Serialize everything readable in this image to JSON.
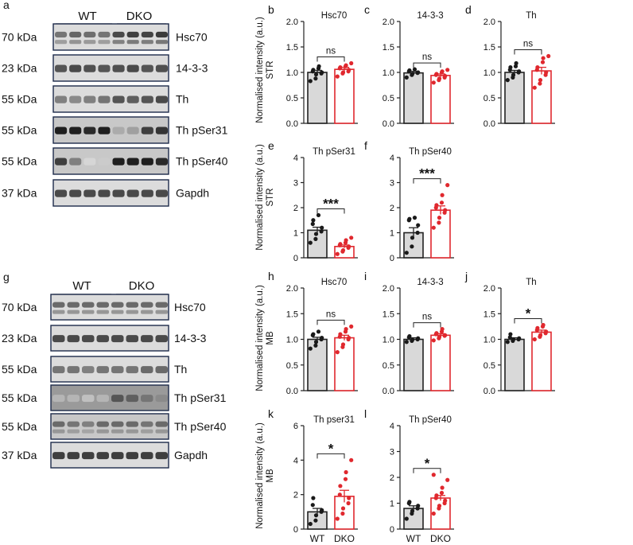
{
  "colors": {
    "wt_bar": "#d9d9d9",
    "dko_bar": "#ffffff",
    "wt_dot": "#1a1a1a",
    "dko_dot": "#e0282e",
    "dko_edge": "#e0282e",
    "axis": "#222222"
  },
  "blots": [
    {
      "label": "a",
      "wt_label": "WT",
      "dko_label": "DKO",
      "rows": [
        {
          "kda": "70 kDa",
          "protein": "Hsc70",
          "wt_int": [
            0.55,
            0.62,
            0.58,
            0.55
          ],
          "dko_int": [
            0.75,
            0.8,
            0.78,
            0.82
          ],
          "dbl": true
        },
        {
          "kda": "23 kDa",
          "protein": "14-3-3",
          "wt_int": [
            0.7,
            0.75,
            0.72,
            0.7
          ],
          "dko_int": [
            0.72,
            0.75,
            0.7,
            0.72
          ],
          "dbl": false
        },
        {
          "kda": "55 kDa",
          "protein": "Th",
          "wt_int": [
            0.5,
            0.45,
            0.5,
            0.55
          ],
          "dko_int": [
            0.7,
            0.65,
            0.7,
            0.75
          ],
          "dbl": false
        },
        {
          "kda": "55 kDa",
          "protein": "Th pSer31",
          "wt_int": [
            0.95,
            0.95,
            0.9,
            0.95
          ],
          "dko_int": [
            0.3,
            0.35,
            0.8,
            0.85
          ],
          "dbl": false
        },
        {
          "kda": "55 kDa",
          "protein": "Th pSer40",
          "wt_int": [
            0.8,
            0.5,
            0.1,
            0.15
          ],
          "dko_int": [
            0.95,
            0.95,
            0.95,
            0.9
          ],
          "dbl": false
        },
        {
          "kda": "37 kDa",
          "protein": "Gapdh",
          "wt_int": [
            0.75,
            0.75,
            0.75,
            0.75
          ],
          "dko_int": [
            0.75,
            0.75,
            0.75,
            0.75
          ],
          "dbl": false
        }
      ]
    },
    {
      "label": "g",
      "wt_label": "WT",
      "dko_label": "DKO",
      "rows": [
        {
          "kda": "70 kDa",
          "protein": "Hsc70",
          "wt_int": [
            0.6,
            0.6,
            0.6,
            0.6
          ],
          "dko_int": [
            0.6,
            0.6,
            0.6,
            0.6
          ],
          "dbl": true
        },
        {
          "kda": "23 kDa",
          "protein": "14-3-3",
          "wt_int": [
            0.75,
            0.75,
            0.75,
            0.75
          ],
          "dko_int": [
            0.75,
            0.75,
            0.75,
            0.75
          ],
          "dbl": false
        },
        {
          "kda": "55 kDa",
          "protein": "Th",
          "wt_int": [
            0.55,
            0.55,
            0.5,
            0.55
          ],
          "dko_int": [
            0.55,
            0.55,
            0.6,
            0.6
          ],
          "dbl": false
        },
        {
          "kda": "55 kDa",
          "protein": "Th pSer31",
          "wt_int": [
            0.25,
            0.25,
            0.2,
            0.25
          ],
          "dko_int": [
            0.7,
            0.65,
            0.55,
            0.45
          ],
          "dbl": false
        },
        {
          "kda": "55 kDa",
          "protein": "Th pSer40",
          "wt_int": [
            0.6,
            0.55,
            0.5,
            0.6
          ],
          "dko_int": [
            0.6,
            0.6,
            0.55,
            0.6
          ],
          "dbl": true
        },
        {
          "kda": "37 kDa",
          "protein": "Gapdh",
          "wt_int": [
            0.8,
            0.8,
            0.8,
            0.8
          ],
          "dko_int": [
            0.8,
            0.8,
            0.8,
            0.8
          ],
          "dbl": false
        }
      ]
    }
  ],
  "row_labels": [
    {
      "ylabel": "Normalised intensity (a.u.)",
      "region": "STR"
    },
    {
      "ylabel": "Normalised intensity (a.u.)",
      "region": "STR"
    },
    {
      "ylabel": "Normalised intensity (a.u.)",
      "region": "MB"
    },
    {
      "ylabel": "Normalised intensity (a.u.)",
      "region": "MB"
    }
  ],
  "chart_data": [
    {
      "type": "bar",
      "panel": "b",
      "title": "Hsc70",
      "categories": [
        "WT",
        "DKO"
      ],
      "values": [
        1.0,
        1.06
      ],
      "errors": [
        0.04,
        0.04
      ],
      "sig": "ns",
      "ylim": [
        0,
        2
      ],
      "yticks": [
        "0.0",
        "0.5",
        "1.0",
        "1.5",
        "2.0"
      ],
      "xlabels": [
        "",
        ""
      ],
      "points": {
        "WT": [
          0.83,
          0.88,
          0.96,
          0.98,
          1.0,
          1.02,
          1.05,
          1.08,
          1.12
        ],
        "DKO": [
          0.92,
          0.98,
          1.0,
          1.02,
          1.05,
          1.08,
          1.1,
          1.12,
          1.14,
          1.18
        ]
      }
    },
    {
      "type": "bar",
      "panel": "c",
      "title": "14-3-3",
      "categories": [
        "WT",
        "DKO"
      ],
      "values": [
        0.99,
        0.94
      ],
      "errors": [
        0.03,
        0.03
      ],
      "sig": "ns",
      "ylim": [
        0,
        2
      ],
      "yticks": [
        "0.0",
        "0.5",
        "1.0",
        "1.5",
        "2.0"
      ],
      "xlabels": [
        "",
        ""
      ],
      "points": {
        "WT": [
          0.9,
          0.95,
          0.97,
          0.99,
          1.0,
          1.02,
          1.04,
          1.06
        ],
        "DKO": [
          0.8,
          0.85,
          0.88,
          0.9,
          0.93,
          0.95,
          0.97,
          1.0,
          1.02,
          1.05
        ]
      }
    },
    {
      "type": "bar",
      "panel": "d",
      "title": "Th",
      "categories": [
        "WT",
        "DKO"
      ],
      "values": [
        1.0,
        1.03
      ],
      "errors": [
        0.04,
        0.07
      ],
      "sig": "ns",
      "ylim": [
        0,
        2
      ],
      "yticks": [
        "0.0",
        "0.5",
        "1.0",
        "1.5",
        "2.0"
      ],
      "xlabels": [
        "",
        ""
      ],
      "points": {
        "WT": [
          0.85,
          0.9,
          0.95,
          1.0,
          1.02,
          1.05,
          1.1,
          1.12,
          1.18
        ],
        "DKO": [
          0.7,
          0.78,
          0.85,
          0.95,
          1.0,
          1.05,
          1.1,
          1.2,
          1.28,
          1.32
        ]
      }
    },
    {
      "type": "bar",
      "panel": "e",
      "title": "Th pSer31",
      "categories": [
        "WT",
        "DKO"
      ],
      "values": [
        1.1,
        0.45
      ],
      "errors": [
        0.12,
        0.06
      ],
      "sig": "***",
      "ylim": [
        0,
        4
      ],
      "yticks": [
        "0",
        "1",
        "2",
        "3",
        "4"
      ],
      "xlabels": [
        "",
        ""
      ],
      "points": {
        "WT": [
          0.6,
          0.75,
          0.95,
          1.05,
          1.2,
          1.35,
          1.5,
          1.7
        ],
        "DKO": [
          0.15,
          0.25,
          0.3,
          0.4,
          0.45,
          0.5,
          0.55,
          0.6,
          0.7,
          0.8
        ]
      }
    },
    {
      "type": "bar",
      "panel": "f",
      "title": "Th pSer40",
      "categories": [
        "WT",
        "DKO"
      ],
      "values": [
        1.0,
        1.9
      ],
      "errors": [
        0.2,
        0.17
      ],
      "sig": "***",
      "ylim": [
        0,
        4
      ],
      "yticks": [
        "0",
        "1",
        "2",
        "3",
        "4"
      ],
      "xlabels": [
        "",
        ""
      ],
      "points": {
        "WT": [
          0.2,
          0.45,
          0.8,
          1.0,
          1.3,
          1.5,
          1.55,
          1.6
        ],
        "DKO": [
          1.2,
          1.4,
          1.6,
          1.8,
          1.9,
          2.0,
          2.1,
          2.2,
          2.5,
          2.9
        ]
      }
    },
    {
      "type": "bar",
      "panel": "h",
      "title": "Hsc70",
      "categories": [
        "WT",
        "DKO"
      ],
      "values": [
        1.0,
        1.03
      ],
      "errors": [
        0.04,
        0.05
      ],
      "sig": "ns",
      "ylim": [
        0,
        2
      ],
      "yticks": [
        "0.0",
        "0.5",
        "1.0",
        "1.5",
        "2.0"
      ],
      "xlabels": [
        "",
        ""
      ],
      "points": {
        "WT": [
          0.82,
          0.88,
          0.95,
          1.0,
          1.03,
          1.08,
          1.1,
          1.15
        ],
        "DKO": [
          0.75,
          0.85,
          0.9,
          1.0,
          1.03,
          1.05,
          1.1,
          1.15,
          1.2,
          1.25
        ]
      }
    },
    {
      "type": "bar",
      "panel": "i",
      "title": "14-3-3",
      "categories": [
        "WT",
        "DKO"
      ],
      "values": [
        1.0,
        1.08
      ],
      "errors": [
        0.03,
        0.03
      ],
      "sig": "ns",
      "ylim": [
        0,
        2
      ],
      "yticks": [
        "0.0",
        "0.5",
        "1.0",
        "1.5",
        "2.0"
      ],
      "xlabels": [
        "",
        ""
      ],
      "points": {
        "WT": [
          0.95,
          0.97,
          0.99,
          1.0,
          1.02,
          1.04,
          1.06
        ],
        "DKO": [
          0.98,
          1.02,
          1.05,
          1.07,
          1.08,
          1.1,
          1.12,
          1.15,
          1.2
        ]
      }
    },
    {
      "type": "bar",
      "panel": "j",
      "title": "Th",
      "categories": [
        "WT",
        "DKO"
      ],
      "values": [
        1.0,
        1.14
      ],
      "errors": [
        0.03,
        0.04
      ],
      "sig": "*",
      "ylim": [
        0,
        2
      ],
      "yticks": [
        "0.0",
        "0.5",
        "1.0",
        "1.5",
        "2.0"
      ],
      "xlabels": [
        "",
        ""
      ],
      "points": {
        "WT": [
          0.95,
          0.97,
          1.0,
          1.0,
          1.02,
          1.04,
          1.1
        ],
        "DKO": [
          1.0,
          1.05,
          1.08,
          1.12,
          1.15,
          1.18,
          1.22,
          1.25,
          1.28
        ]
      }
    },
    {
      "type": "bar",
      "panel": "k",
      "title": "Th pser31",
      "categories": [
        "WT",
        "DKO"
      ],
      "values": [
        1.0,
        1.9
      ],
      "errors": [
        0.2,
        0.35
      ],
      "sig": "*",
      "ylim": [
        0,
        6
      ],
      "yticks": [
        "0",
        "2",
        "4",
        "6"
      ],
      "xlabels": [
        "WT",
        "DKO"
      ],
      "points": {
        "WT": [
          0.3,
          0.5,
          0.8,
          1.0,
          1.1,
          1.4,
          1.8
        ],
        "DKO": [
          0.6,
          0.9,
          1.2,
          1.5,
          1.8,
          2.0,
          2.5,
          2.9,
          3.3,
          4.0
        ]
      }
    },
    {
      "type": "bar",
      "panel": "l",
      "title": "Th pSer40",
      "categories": [
        "WT",
        "DKO"
      ],
      "values": [
        0.8,
        1.2
      ],
      "errors": [
        0.1,
        0.1
      ],
      "sig": "*",
      "ylim": [
        0,
        4
      ],
      "yticks": [
        "0",
        "1",
        "2",
        "3",
        "4"
      ],
      "xlabels": [
        "WT",
        "DKO"
      ],
      "points": {
        "WT": [
          0.4,
          0.6,
          0.7,
          0.8,
          0.9,
          1.0,
          1.05
        ],
        "DKO": [
          0.6,
          0.8,
          0.9,
          1.0,
          1.1,
          1.2,
          1.3,
          1.4,
          1.6,
          1.9,
          2.1
        ]
      }
    }
  ]
}
